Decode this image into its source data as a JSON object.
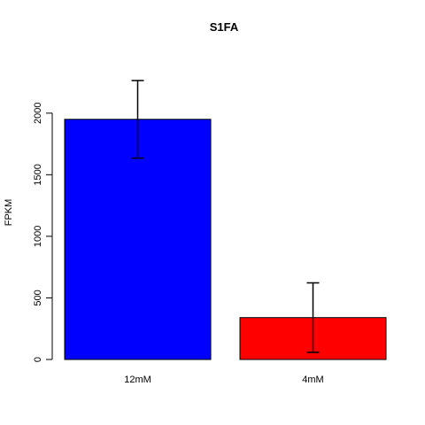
{
  "chart_data": {
    "type": "bar",
    "title": "S1FA",
    "xlabel": "",
    "ylabel": "FPKM",
    "categories": [
      "12mM",
      "4mM"
    ],
    "values": [
      1950,
      340
    ],
    "error_low": [
      1635,
      58
    ],
    "error_high": [
      2265,
      622
    ],
    "colors": [
      "#0000ff",
      "#ff0000"
    ],
    "yticks": [
      0,
      500,
      1000,
      1500,
      2000
    ],
    "ytick_labels": [
      "0",
      "500",
      "1000",
      "1500",
      "2000"
    ],
    "ylim": [
      0,
      2300
    ],
    "grid": false,
    "legend": "none"
  }
}
